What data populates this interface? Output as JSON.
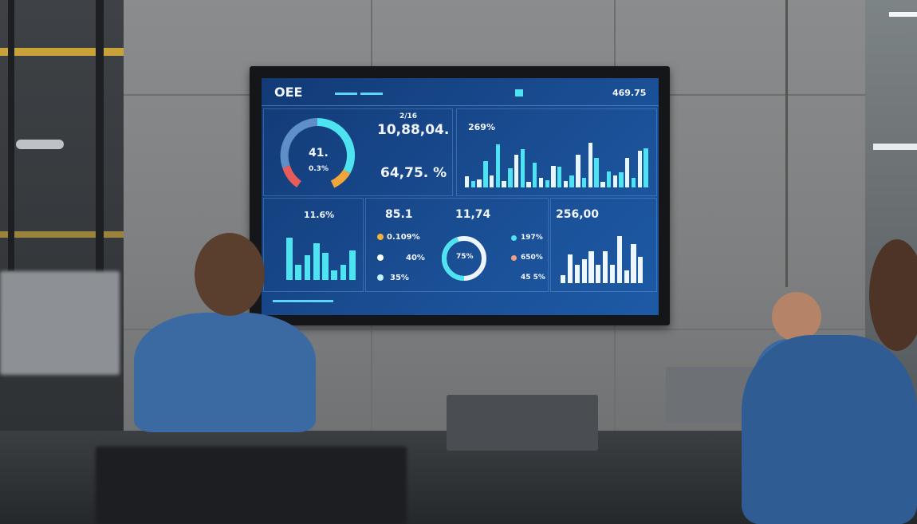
{
  "dashboard": {
    "title": "OEE",
    "header_value": "469.75",
    "gauge": {
      "value": "41.",
      "sub": "0.3%",
      "colors": [
        "#5f8fc9",
        "#4de3f0",
        "#f0a63a",
        "#e85b5b"
      ]
    },
    "kpi_top_small": "2/16",
    "kpi_top": "10,88,04.",
    "kpi_mid": "64,75. %",
    "chart_top_label": "269%",
    "chart_top_values": [
      20,
      12,
      14,
      48,
      22,
      80,
      12,
      35,
      60,
      70,
      10,
      45,
      18,
      13,
      40,
      38,
      12,
      22,
      60,
      18,
      82,
      55,
      10,
      30,
      22,
      28,
      55,
      18,
      68,
      72
    ],
    "panel1_value": "11.6%",
    "panel1_values": [
      85,
      30,
      50,
      75,
      55,
      20,
      30,
      60
    ],
    "panel2_value": "85.1",
    "panel2_items": [
      "0.109%",
      "40%",
      "35%"
    ],
    "donut": {
      "value": "75%",
      "fraction": 0.75
    },
    "panel3_value": "11,74",
    "panel3_items": [
      "197%",
      "650%",
      "45 5%"
    ],
    "panel4_value": "256,00",
    "panel4_values": [
      15,
      55,
      35,
      45,
      60,
      35,
      60,
      35,
      90,
      25,
      75,
      50
    ],
    "accent": "#4de3f0"
  }
}
